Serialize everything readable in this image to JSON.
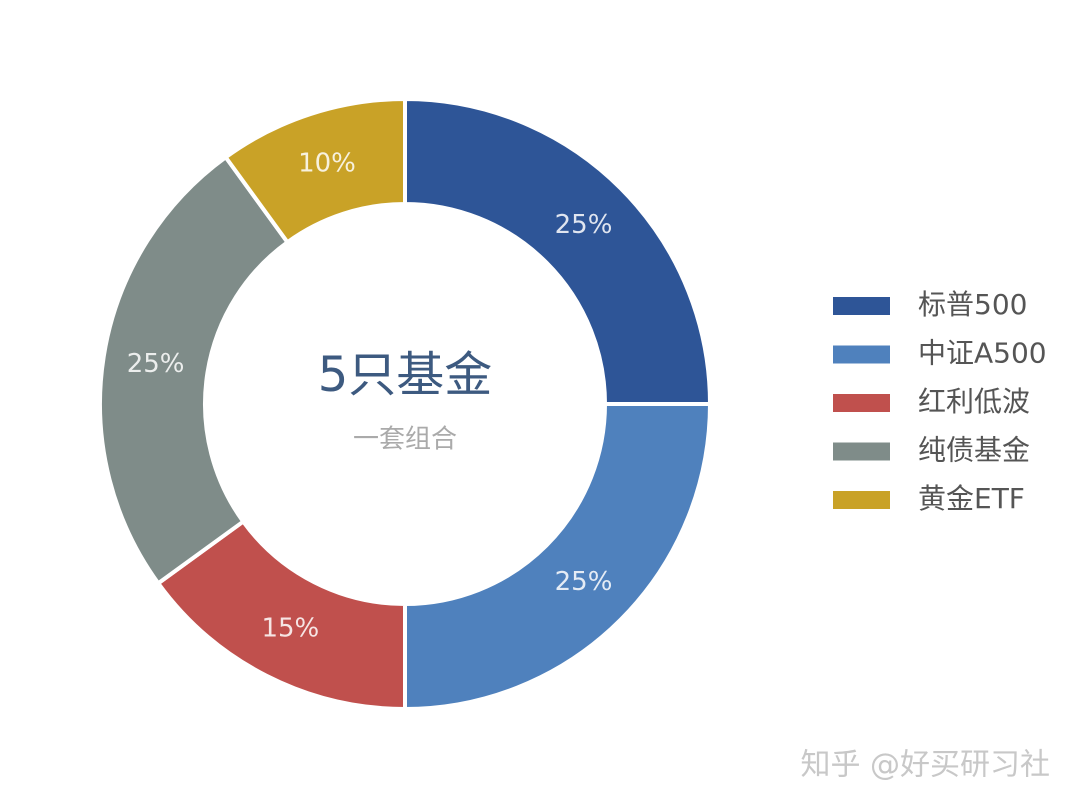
{
  "chart_data": {
    "type": "pie",
    "donut": true,
    "center_title": "5只基金",
    "center_subtitle": "一套组合",
    "categories": [
      "标普500",
      "中证A500",
      "红利低波",
      "纯债基金",
      "黄金ETF"
    ],
    "values": [
      25,
      25,
      15,
      25,
      10
    ],
    "value_labels": [
      "25%",
      "25%",
      "15%",
      "25%",
      "10%"
    ],
    "colors": [
      "#2e5597",
      "#4f81bd",
      "#c0504d",
      "#7f8c89",
      "#c9a227"
    ],
    "legend": "right"
  },
  "watermark": "知乎 @好买研习社"
}
